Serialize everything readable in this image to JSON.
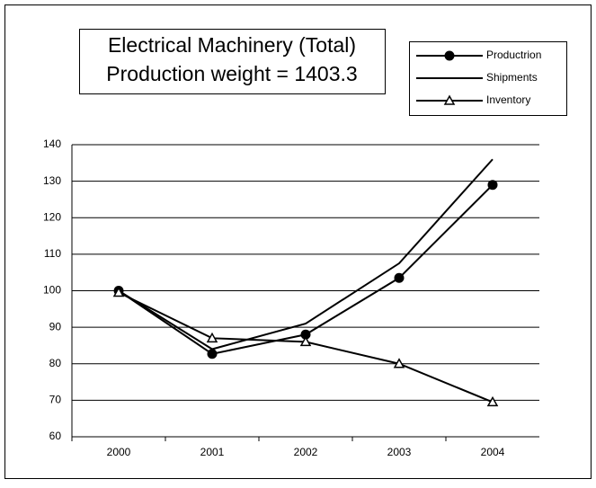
{
  "chart_data": {
    "type": "line",
    "title": [
      "Electrical Machinery (Total)",
      "Production weight = 1403.3"
    ],
    "categories": [
      "2000",
      "2001",
      "2002",
      "2003",
      "2004"
    ],
    "series": [
      {
        "name": "Productrion",
        "color": "#000000",
        "marker": "circle",
        "values": [
          100,
          82.7,
          88,
          103.5,
          129
        ]
      },
      {
        "name": "Shipments",
        "color": "#000000",
        "marker": "none",
        "values": [
          100,
          84,
          91,
          107.5,
          136
        ]
      },
      {
        "name": "Inventory",
        "color": "#000000",
        "marker": "triangle",
        "values": [
          99.5,
          87,
          86,
          80,
          69.5
        ]
      }
    ],
    "ylim": [
      60,
      140
    ],
    "yticks": [
      60,
      70,
      80,
      90,
      100,
      110,
      120,
      130,
      140
    ],
    "grid": true,
    "legend": "top-right"
  }
}
